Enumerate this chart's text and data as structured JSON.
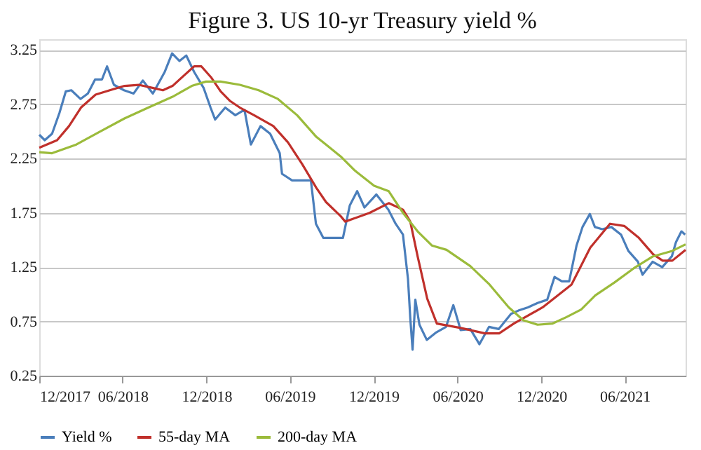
{
  "chart_data": {
    "type": "line",
    "title": "Figure 3. US 10-yr Treasury yield %",
    "xlim": [
      "2017-12-01",
      "2021-10-12"
    ],
    "xticks": [
      {
        "value": "2017-12-01",
        "label": "12/2017"
      },
      {
        "value": "2018-06-01",
        "label": "06/2018"
      },
      {
        "value": "2018-12-01",
        "label": "12/2018"
      },
      {
        "value": "2019-06-01",
        "label": "06/2019"
      },
      {
        "value": "2019-12-01",
        "label": "12/2019"
      },
      {
        "value": "2020-06-01",
        "label": "06/2020"
      },
      {
        "value": "2020-12-01",
        "label": "12/2020"
      },
      {
        "value": "2021-06-01",
        "label": "06/2021"
      }
    ],
    "ylim": [
      0.25,
      3.35
    ],
    "yticks": [
      {
        "value": 0.25,
        "label": "0.25"
      },
      {
        "value": 0.75,
        "label": "0.75"
      },
      {
        "value": 1.25,
        "label": "1.25"
      },
      {
        "value": 1.75,
        "label": "1.75"
      },
      {
        "value": 2.25,
        "label": "2.25"
      },
      {
        "value": 2.75,
        "label": "2.75"
      },
      {
        "value": 3.25,
        "label": "3.25"
      }
    ],
    "grid": "y",
    "legend": "bottom",
    "marker": "none",
    "line_style": "solid",
    "series": [
      {
        "name": "Yield %",
        "color": "#4a7ebb",
        "x": [
          "2017-12-01",
          "2017-12-13",
          "2017-12-29",
          "2018-01-14",
          "2018-01-28",
          "2018-02-09",
          "2018-03-01",
          "2018-03-17",
          "2018-04-02",
          "2018-04-17",
          "2018-04-28",
          "2018-05-13",
          "2018-06-04",
          "2018-06-25",
          "2018-07-15",
          "2018-08-06",
          "2018-09-01",
          "2018-09-17",
          "2018-10-03",
          "2018-10-18",
          "2018-11-04",
          "2018-11-25",
          "2018-12-10",
          "2018-12-20",
          "2019-01-11",
          "2019-02-02",
          "2019-02-22",
          "2019-03-08",
          "2019-03-29",
          "2019-04-19",
          "2019-05-10",
          "2019-05-15",
          "2019-06-06",
          "2019-06-27",
          "2019-07-17",
          "2019-07-28",
          "2019-08-13",
          "2019-09-25",
          "2019-10-10",
          "2019-10-26",
          "2019-11-11",
          "2019-12-07",
          "2020-01-02",
          "2020-01-18",
          "2020-02-03",
          "2020-02-14",
          "2020-02-19",
          "2020-02-24",
          "2020-03-01",
          "2020-03-10",
          "2020-03-26",
          "2020-04-16",
          "2020-05-07",
          "2020-05-23",
          "2020-06-08",
          "2020-06-29",
          "2020-07-19",
          "2020-08-09",
          "2020-08-30",
          "2020-09-26",
          "2020-10-12",
          "2020-11-02",
          "2020-11-23",
          "2020-12-14",
          "2020-12-30",
          "2021-01-15",
          "2021-01-31",
          "2021-02-16",
          "2021-03-01",
          "2021-03-17",
          "2021-03-28",
          "2021-04-13",
          "2021-05-03",
          "2021-05-24",
          "2021-06-09",
          "2021-06-30",
          "2021-07-10",
          "2021-08-01",
          "2021-08-22",
          "2021-09-12",
          "2021-09-21",
          "2021-10-03",
          "2021-10-11"
        ],
        "values": [
          2.47,
          2.42,
          2.48,
          2.67,
          2.87,
          2.88,
          2.8,
          2.85,
          2.98,
          2.98,
          3.1,
          2.93,
          2.88,
          2.85,
          2.97,
          2.85,
          3.05,
          3.22,
          3.15,
          3.2,
          3.05,
          2.9,
          2.72,
          2.61,
          2.72,
          2.65,
          2.7,
          2.38,
          2.55,
          2.48,
          2.3,
          2.11,
          2.05,
          2.05,
          2.05,
          1.65,
          1.52,
          1.52,
          1.82,
          1.95,
          1.8,
          1.92,
          1.78,
          1.65,
          1.55,
          1.14,
          0.78,
          0.49,
          0.95,
          0.72,
          0.58,
          0.65,
          0.7,
          0.9,
          0.67,
          0.68,
          0.54,
          0.7,
          0.68,
          0.82,
          0.85,
          0.88,
          0.92,
          0.95,
          1.16,
          1.12,
          1.12,
          1.45,
          1.62,
          1.74,
          1.62,
          1.6,
          1.62,
          1.55,
          1.4,
          1.3,
          1.18,
          1.3,
          1.25,
          1.35,
          1.48,
          1.58,
          1.55
        ]
      },
      {
        "name": "55-day MA",
        "color": "#c0302b",
        "x": [
          "2017-12-01",
          "2018-01-09",
          "2018-02-04",
          "2018-03-02",
          "2018-04-03",
          "2018-05-04",
          "2018-06-05",
          "2018-07-06",
          "2018-08-07",
          "2018-08-28",
          "2018-09-18",
          "2018-10-14",
          "2018-11-04",
          "2018-11-20",
          "2018-12-11",
          "2019-01-01",
          "2019-01-22",
          "2019-02-12",
          "2019-03-15",
          "2019-04-05",
          "2019-04-26",
          "2019-05-28",
          "2019-06-28",
          "2019-07-29",
          "2019-08-19",
          "2019-09-20",
          "2019-09-30",
          "2019-11-22",
          "2020-01-03",
          "2020-02-03",
          "2020-02-19",
          "2020-03-06",
          "2020-03-27",
          "2020-04-17",
          "2020-06-08",
          "2020-07-31",
          "2020-08-31",
          "2020-10-02",
          "2020-12-04",
          "2021-02-05",
          "2021-03-18",
          "2021-04-30",
          "2021-05-31",
          "2021-07-02",
          "2021-08-02",
          "2021-08-23",
          "2021-09-13",
          "2021-10-12"
        ],
        "values": [
          2.35,
          2.42,
          2.55,
          2.72,
          2.84,
          2.88,
          2.92,
          2.93,
          2.9,
          2.88,
          2.92,
          3.02,
          3.1,
          3.1,
          3.0,
          2.87,
          2.78,
          2.72,
          2.65,
          2.6,
          2.55,
          2.4,
          2.2,
          1.98,
          1.85,
          1.72,
          1.67,
          1.75,
          1.84,
          1.78,
          1.67,
          1.35,
          0.96,
          0.73,
          0.69,
          0.64,
          0.64,
          0.73,
          0.88,
          1.09,
          1.43,
          1.65,
          1.63,
          1.52,
          1.37,
          1.31,
          1.31,
          1.41
        ]
      },
      {
        "name": "200-day MA",
        "color": "#9bbb3b",
        "x": [
          "2017-12-01",
          "2017-12-29",
          "2018-02-20",
          "2018-04-13",
          "2018-06-05",
          "2018-07-27",
          "2018-09-18",
          "2018-10-30",
          "2018-11-30",
          "2019-01-01",
          "2019-02-12",
          "2019-03-25",
          "2019-05-06",
          "2019-06-17",
          "2019-07-29",
          "2019-08-19",
          "2019-09-20",
          "2019-10-21",
          "2019-12-02",
          "2020-01-03",
          "2020-02-03",
          "2020-03-06",
          "2020-04-06",
          "2020-05-08",
          "2020-06-29",
          "2020-08-10",
          "2020-09-21",
          "2020-10-23",
          "2020-11-23",
          "2020-12-25",
          "2021-01-25",
          "2021-02-26",
          "2021-03-29",
          "2021-05-10",
          "2021-06-21",
          "2021-08-02",
          "2021-09-13",
          "2021-10-12"
        ],
        "values": [
          2.31,
          2.3,
          2.38,
          2.5,
          2.62,
          2.72,
          2.82,
          2.92,
          2.96,
          2.96,
          2.93,
          2.88,
          2.8,
          2.65,
          2.45,
          2.38,
          2.27,
          2.14,
          2.0,
          1.95,
          1.75,
          1.58,
          1.45,
          1.41,
          1.26,
          1.09,
          0.88,
          0.76,
          0.72,
          0.73,
          0.79,
          0.86,
          0.99,
          1.11,
          1.24,
          1.35,
          1.4,
          1.46
        ]
      }
    ]
  }
}
